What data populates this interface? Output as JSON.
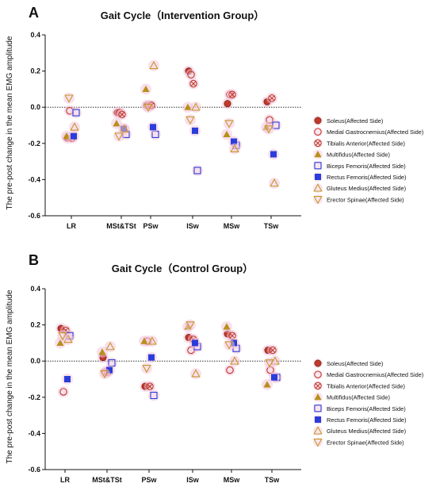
{
  "colors": {
    "soleus": "#c0392b",
    "medial_gastrocnemius": "#c0392b",
    "tibialis_anterior": "#c0392b",
    "multifidus": "#b8901b",
    "biceps_femoris": "#2a3cdb",
    "rectus_femoris": "#2a3cdb",
    "gluteus_medius": "#c9952a",
    "erector_spinae": "#c9952a",
    "halo": "#f3c7dc"
  },
  "chart_data": [
    {
      "panel": "A",
      "type": "scatter",
      "title": "Gait Cycle（Intervention Group）",
      "ylabel": "The pre-post change in the mean EMG amplitude",
      "xlabel": "",
      "categories": [
        "LR",
        "MSt&TSt",
        "PSw",
        "ISw",
        "MSw",
        "TSw"
      ],
      "ylim": [
        -0.6,
        0.4
      ],
      "yticks": [
        "0.4",
        "0.2",
        "0.0",
        "-0.2",
        "-0.4",
        "-0.6"
      ],
      "reference_line": 0.0,
      "legend_position": "right",
      "series": [
        {
          "name": "Soleus(Affected Side)",
          "marker": "filled-circle",
          "values": [
            -0.17,
            -0.03,
            0.01,
            0.2,
            0.02,
            0.03
          ]
        },
        {
          "name": "Medial Gastrocnemius(Affected Side)",
          "marker": "open-circle",
          "values": [
            -0.02,
            -0.03,
            0.01,
            0.18,
            0.07,
            -0.07
          ]
        },
        {
          "name": "Tibialis Anterior(Affected Side)",
          "marker": "x-circle",
          "values": [
            -0.17,
            -0.04,
            0.01,
            0.13,
            0.07,
            0.05
          ]
        },
        {
          "name": "Multifidus(Affected Side)",
          "marker": "filled-triangle",
          "values": [
            -0.16,
            -0.09,
            0.1,
            0.0,
            -0.15,
            -0.11
          ]
        },
        {
          "name": "Biceps Femoris(Affected Side)",
          "marker": "open-square",
          "values": [
            -0.03,
            -0.15,
            -0.15,
            -0.35,
            -0.21,
            -0.1
          ]
        },
        {
          "name": "Rectus Femoris(Affected Side)",
          "marker": "filled-square",
          "values": [
            -0.16,
            -0.12,
            -0.11,
            -0.13,
            -0.19,
            -0.26
          ]
        },
        {
          "name": "Gluteus Medius(Affected Side)",
          "marker": "open-triangle",
          "values": [
            -0.11,
            -0.12,
            0.23,
            0.0,
            -0.23,
            -0.42
          ]
        },
        {
          "name": "Erector Spinae(Affected Side)",
          "marker": "open-triangle-down",
          "values": [
            0.05,
            -0.16,
            0.0,
            -0.07,
            -0.09,
            -0.12
          ]
        }
      ]
    },
    {
      "panel": "B",
      "type": "scatter",
      "title": "Gait Cycle（Control Group）",
      "ylabel": "The pre-post change in the mean EMG amplitude",
      "xlabel": "",
      "categories": [
        "LR",
        "MSt&TSt",
        "PSw",
        "ISw",
        "MSw",
        "TSw"
      ],
      "ylim": [
        -0.6,
        0.4
      ],
      "yticks": [
        "0.4",
        "0.2",
        "0.0",
        "-0.2",
        "-0.4",
        "-0.6"
      ],
      "reference_line": 0.0,
      "legend_position": "right",
      "series": [
        {
          "name": "Soleus(Affected Side)",
          "marker": "filled-circle",
          "values": [
            0.18,
            0.02,
            -0.14,
            0.13,
            0.15,
            0.06
          ]
        },
        {
          "name": "Medial Gastrocnemius(Affected Side)",
          "marker": "open-circle",
          "values": [
            -0.17,
            -0.06,
            0.11,
            0.06,
            -0.05,
            -0.05
          ]
        },
        {
          "name": "Tibialis Anterior(Affected Side)",
          "marker": "x-circle",
          "values": [
            0.17,
            -0.06,
            -0.14,
            0.12,
            0.14,
            0.06
          ]
        },
        {
          "name": "Multifidus(Affected Side)",
          "marker": "filled-triangle",
          "values": [
            0.1,
            0.05,
            0.11,
            0.19,
            0.19,
            -0.13
          ]
        },
        {
          "name": "Biceps Femoris(Affected Side)",
          "marker": "open-square",
          "values": [
            0.14,
            -0.01,
            -0.19,
            0.08,
            0.07,
            -0.09
          ]
        },
        {
          "name": "Rectus Femoris(Affected Side)",
          "marker": "filled-square",
          "values": [
            -0.1,
            -0.05,
            0.02,
            0.1,
            0.1,
            -0.09
          ]
        },
        {
          "name": "Gluteus Medius(Affected Side)",
          "marker": "open-triangle",
          "values": [
            0.12,
            0.08,
            0.11,
            -0.07,
            0.0,
            0.0
          ]
        },
        {
          "name": "Erector Spinae(Affected Side)",
          "marker": "open-triangle-down",
          "values": [
            0.14,
            -0.07,
            -0.04,
            0.2,
            0.09,
            -0.01
          ]
        }
      ]
    }
  ]
}
